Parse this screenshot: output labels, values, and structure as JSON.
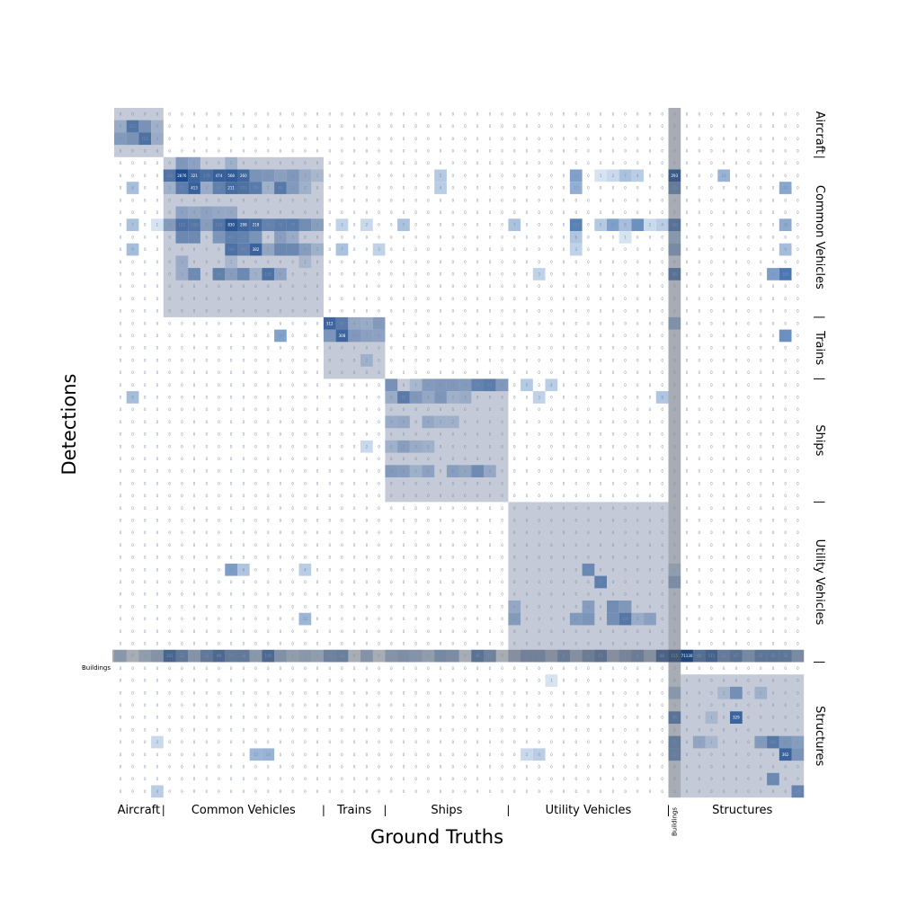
{
  "chart_data": {
    "type": "heatmap",
    "xlabel": "Ground Truths",
    "ylabel": "Detections",
    "colormap": "Blues",
    "x_groups": [
      {
        "label": "Aircraft",
        "sep": "|"
      },
      {
        "label": "Common Vehicles",
        "sep": "|"
      },
      {
        "label": "Trains",
        "sep": "|"
      },
      {
        "label": "Ships",
        "sep": "|"
      },
      {
        "label": "Utility Vehicles",
        "sep": "|"
      },
      {
        "label": "Buildings",
        "sep": ""
      },
      {
        "label": "Structures",
        "sep": ""
      }
    ],
    "y_groups": [
      {
        "label": "Aircraft",
        "sep": "|"
      },
      {
        "label": "Common Vehicles",
        "sep": "|"
      },
      {
        "label": "Trains",
        "sep": "|"
      },
      {
        "label": "Ships",
        "sep": "|"
      },
      {
        "label": "Utility Vehicles",
        "sep": "|"
      },
      {
        "label": "Structures",
        "sep": ""
      }
    ],
    "row_tick_label": "Buildings",
    "group_spans_rows": [
      [
        0,
        3
      ],
      [
        4,
        16
      ],
      [
        17,
        21
      ],
      [
        22,
        31
      ],
      [
        32,
        44
      ],
      [
        45,
        45
      ],
      [
        46,
        55
      ]
    ],
    "group_spans_cols": [
      [
        0,
        3
      ],
      [
        4,
        16
      ],
      [
        17,
        21
      ],
      [
        22,
        31
      ],
      [
        32,
        44
      ],
      [
        45,
        45
      ],
      [
        46,
        55
      ]
    ],
    "highlights": [
      {
        "r": 1,
        "c": 1,
        "v": 111
      },
      {
        "r": 1,
        "c": 2,
        "v": 18
      },
      {
        "r": 1,
        "c": 3,
        "v": 2
      },
      {
        "r": 1,
        "c": 0,
        "v": 3
      },
      {
        "r": 2,
        "c": 0,
        "v": 11
      },
      {
        "r": 2,
        "c": 1,
        "v": 18
      },
      {
        "r": 2,
        "c": 2,
        "v": 152
      },
      {
        "r": 2,
        "c": 3,
        "v": 3
      },
      {
        "r": 4,
        "c": 5,
        "v": 13
      },
      {
        "r": 4,
        "c": 6,
        "v": 6
      },
      {
        "r": 4,
        "c": 9,
        "v": 2
      },
      {
        "r": 5,
        "c": 4,
        "v": 122
      },
      {
        "r": 5,
        "c": 5,
        "v": 2876
      },
      {
        "r": 5,
        "c": 6,
        "v": 321
      },
      {
        "r": 5,
        "c": 7,
        "v": 174
      },
      {
        "r": 5,
        "c": 8,
        "v": 474
      },
      {
        "r": 5,
        "c": 9,
        "v": 568
      },
      {
        "r": 5,
        "c": 10,
        "v": 260
      },
      {
        "r": 5,
        "c": 11,
        "v": 17
      },
      {
        "r": 5,
        "c": 12,
        "v": 14
      },
      {
        "r": 5,
        "c": 13,
        "v": 7
      },
      {
        "r": 5,
        "c": 14,
        "v": 13
      },
      {
        "r": 5,
        "c": 15,
        "v": 3
      },
      {
        "r": 5,
        "c": 16,
        "v": 1
      },
      {
        "r": 5,
        "c": 26,
        "v": 5
      },
      {
        "r": 5,
        "c": 37,
        "v": 31
      },
      {
        "r": 5,
        "c": 39,
        "v": 1
      },
      {
        "r": 5,
        "c": 40,
        "v": 2
      },
      {
        "r": 5,
        "c": 41,
        "v": 7
      },
      {
        "r": 5,
        "c": 42,
        "v": 4
      },
      {
        "r": 5,
        "c": 45,
        "v": 293
      },
      {
        "r": 5,
        "c": 49,
        "v": 14
      },
      {
        "r": 6,
        "c": 1,
        "v": 8
      },
      {
        "r": 6,
        "c": 4,
        "v": 2
      },
      {
        "r": 6,
        "c": 5,
        "v": 73
      },
      {
        "r": 6,
        "c": 6,
        "v": 413
      },
      {
        "r": 6,
        "c": 7,
        "v": 3
      },
      {
        "r": 6,
        "c": 8,
        "v": 61
      },
      {
        "r": 6,
        "c": 9,
        "v": 211
      },
      {
        "r": 6,
        "c": 10,
        "v": 153
      },
      {
        "r": 6,
        "c": 11,
        "v": 78
      },
      {
        "r": 6,
        "c": 12,
        "v": 2
      },
      {
        "r": 6,
        "c": 13,
        "v": 93
      },
      {
        "r": 6,
        "c": 14,
        "v": 11
      },
      {
        "r": 6,
        "c": 15,
        "v": 2
      },
      {
        "r": 6,
        "c": 26,
        "v": 4
      },
      {
        "r": 6,
        "c": 37,
        "v": 17
      },
      {
        "r": 6,
        "c": 45,
        "v": 25
      },
      {
        "r": 6,
        "c": 54,
        "v": 24
      },
      {
        "r": 8,
        "c": 5,
        "v": 6
      },
      {
        "r": 8,
        "c": 6,
        "v": 4
      },
      {
        "r": 8,
        "c": 7,
        "v": 6
      },
      {
        "r": 8,
        "c": 8,
        "v": 4
      },
      {
        "r": 8,
        "c": 9,
        "v": 4
      },
      {
        "r": 9,
        "c": 1,
        "v": 7
      },
      {
        "r": 9,
        "c": 3,
        "v": 1
      },
      {
        "r": 9,
        "c": 4,
        "v": 10
      },
      {
        "r": 9,
        "c": 5,
        "v": 152
      },
      {
        "r": 9,
        "c": 6,
        "v": 109
      },
      {
        "r": 9,
        "c": 7,
        "v": 9
      },
      {
        "r": 9,
        "c": 8,
        "v": 110
      },
      {
        "r": 9,
        "c": 9,
        "v": 830
      },
      {
        "r": 9,
        "c": 10,
        "v": 298
      },
      {
        "r": 9,
        "c": 11,
        "v": 218
      },
      {
        "r": 9,
        "c": 12,
        "v": 50
      },
      {
        "r": 9,
        "c": 13,
        "v": 75
      },
      {
        "r": 9,
        "c": 14,
        "v": 79
      },
      {
        "r": 9,
        "c": 15,
        "v": 25
      },
      {
        "r": 9,
        "c": 16,
        "v": 8
      },
      {
        "r": 9,
        "c": 18,
        "v": 3
      },
      {
        "r": 9,
        "c": 20,
        "v": 2
      },
      {
        "r": 9,
        "c": 23,
        "v": 7
      },
      {
        "r": 9,
        "c": 32,
        "v": 7
      },
      {
        "r": 9,
        "c": 37,
        "v": 120
      },
      {
        "r": 9,
        "c": 39,
        "v": 5
      },
      {
        "r": 9,
        "c": 40,
        "v": 33
      },
      {
        "r": 9,
        "c": 41,
        "v": 8
      },
      {
        "r": 9,
        "c": 42,
        "v": 63
      },
      {
        "r": 9,
        "c": 43,
        "v": 2
      },
      {
        "r": 9,
        "c": 44,
        "v": 4
      },
      {
        "r": 9,
        "c": 45,
        "v": 54
      },
      {
        "r": 9,
        "c": 54,
        "v": 20
      },
      {
        "r": 10,
        "c": 5,
        "v": 36
      },
      {
        "r": 10,
        "c": 6,
        "v": 31
      },
      {
        "r": 10,
        "c": 8,
        "v": 15
      },
      {
        "r": 10,
        "c": 9,
        "v": 63
      },
      {
        "r": 10,
        "c": 10,
        "v": 53
      },
      {
        "r": 10,
        "c": 11,
        "v": 17
      },
      {
        "r": 10,
        "c": 13,
        "v": 8
      },
      {
        "r": 10,
        "c": 14,
        "v": 3
      },
      {
        "r": 10,
        "c": 37,
        "v": 6
      },
      {
        "r": 10,
        "c": 41,
        "v": 1
      },
      {
        "r": 10,
        "c": 45,
        "v": 2
      },
      {
        "r": 11,
        "c": 1,
        "v": 9
      },
      {
        "r": 11,
        "c": 9,
        "v": 144
      },
      {
        "r": 11,
        "c": 10,
        "v": 64
      },
      {
        "r": 11,
        "c": 11,
        "v": 382
      },
      {
        "r": 11,
        "c": 12,
        "v": 5
      },
      {
        "r": 11,
        "c": 13,
        "v": 37
      },
      {
        "r": 11,
        "c": 14,
        "v": 36
      },
      {
        "r": 11,
        "c": 15,
        "v": 9
      },
      {
        "r": 11,
        "c": 16,
        "v": 2
      },
      {
        "r": 11,
        "c": 18,
        "v": 7
      },
      {
        "r": 11,
        "c": 21,
        "v": 3
      },
      {
        "r": 11,
        "c": 37,
        "v": 3
      },
      {
        "r": 11,
        "c": 45,
        "v": 7
      },
      {
        "r": 11,
        "c": 54,
        "v": 9
      },
      {
        "r": 12,
        "c": 5,
        "v": 3
      },
      {
        "r": 12,
        "c": 9,
        "v": 1
      },
      {
        "r": 12,
        "c": 15,
        "v": 1
      },
      {
        "r": 13,
        "c": 5,
        "v": 3
      },
      {
        "r": 13,
        "c": 6,
        "v": 30
      },
      {
        "r": 13,
        "c": 8,
        "v": 56
      },
      {
        "r": 13,
        "c": 9,
        "v": 9
      },
      {
        "r": 13,
        "c": 10,
        "v": 34
      },
      {
        "r": 13,
        "c": 11,
        "v": 2
      },
      {
        "r": 13,
        "c": 12,
        "v": 156
      },
      {
        "r": 13,
        "c": 13,
        "v": 6
      },
      {
        "r": 13,
        "c": 34,
        "v": 3
      },
      {
        "r": 13,
        "c": 45,
        "v": 50
      },
      {
        "r": 13,
        "c": 53,
        "v": 37
      },
      {
        "r": 13,
        "c": 54,
        "v": 180
      },
      {
        "r": 17,
        "c": 17,
        "v": 312
      },
      {
        "r": 17,
        "c": 18,
        "v": 83
      },
      {
        "r": 17,
        "c": 19,
        "v": 4
      },
      {
        "r": 17,
        "c": 20,
        "v": 3
      },
      {
        "r": 17,
        "c": 21,
        "v": 11
      },
      {
        "r": 17,
        "c": 45,
        "v": 4
      },
      {
        "r": 18,
        "c": 13,
        "v": 30
      },
      {
        "r": 18,
        "c": 17,
        "v": 15
      },
      {
        "r": 18,
        "c": 18,
        "v": 308
      },
      {
        "r": 18,
        "c": 19,
        "v": 13
      },
      {
        "r": 18,
        "c": 20,
        "v": 7
      },
      {
        "r": 18,
        "c": 21,
        "v": 6
      },
      {
        "r": 18,
        "c": 54,
        "v": 64
      },
      {
        "r": 20,
        "c": 20,
        "v": 2
      },
      {
        "r": 22,
        "c": 22,
        "v": 19
      },
      {
        "r": 22,
        "c": 24,
        "v": 1
      },
      {
        "r": 22,
        "c": 25,
        "v": 10
      },
      {
        "r": 22,
        "c": 26,
        "v": 12
      },
      {
        "r": 22,
        "c": 27,
        "v": 12
      },
      {
        "r": 22,
        "c": 28,
        "v": 10
      },
      {
        "r": 22,
        "c": 29,
        "v": 51
      },
      {
        "r": 22,
        "c": 30,
        "v": 73
      },
      {
        "r": 22,
        "c": 31,
        "v": 13
      },
      {
        "r": 22,
        "c": 33,
        "v": 5
      },
      {
        "r": 22,
        "c": 35,
        "v": 4
      },
      {
        "r": 23,
        "c": 1,
        "v": 9
      },
      {
        "r": 23,
        "c": 22,
        "v": 3
      },
      {
        "r": 23,
        "c": 23,
        "v": 85
      },
      {
        "r": 23,
        "c": 24,
        "v": 12
      },
      {
        "r": 23,
        "c": 25,
        "v": 4
      },
      {
        "r": 23,
        "c": 26,
        "v": 14
      },
      {
        "r": 23,
        "c": 27,
        "v": 2
      },
      {
        "r": 23,
        "c": 28,
        "v": 3
      },
      {
        "r": 23,
        "c": 34,
        "v": 3
      },
      {
        "r": 23,
        "c": 44,
        "v": 6
      },
      {
        "r": 25,
        "c": 22,
        "v": 3
      },
      {
        "r": 25,
        "c": 23,
        "v": 4
      },
      {
        "r": 25,
        "c": 25,
        "v": 4
      },
      {
        "r": 25,
        "c": 26,
        "v": 2
      },
      {
        "r": 25,
        "c": 27,
        "v": 2
      },
      {
        "r": 27,
        "c": 20,
        "v": 2
      },
      {
        "r": 27,
        "c": 22,
        "v": 2
      },
      {
        "r": 27,
        "c": 23,
        "v": 8
      },
      {
        "r": 27,
        "c": 24,
        "v": 3
      },
      {
        "r": 27,
        "c": 25,
        "v": 2
      },
      {
        "r": 29,
        "c": 22,
        "v": 11
      },
      {
        "r": 29,
        "c": 23,
        "v": 9
      },
      {
        "r": 29,
        "c": 24,
        "v": 2
      },
      {
        "r": 29,
        "c": 25,
        "v": 6
      },
      {
        "r": 29,
        "c": 27,
        "v": 8
      },
      {
        "r": 29,
        "c": 28,
        "v": 5
      },
      {
        "r": 29,
        "c": 29,
        "v": 30
      },
      {
        "r": 29,
        "c": 30,
        "v": 4
      },
      {
        "r": 37,
        "c": 9,
        "v": 37
      },
      {
        "r": 37,
        "c": 10,
        "v": 6
      },
      {
        "r": 37,
        "c": 15,
        "v": 4
      },
      {
        "r": 37,
        "c": 38,
        "v": 35
      },
      {
        "r": 37,
        "c": 45,
        "v": 1
      },
      {
        "r": 38,
        "c": 39,
        "v": 67
      },
      {
        "r": 38,
        "c": 45,
        "v": 6
      },
      {
        "r": 40,
        "c": 32,
        "v": 4
      },
      {
        "r": 40,
        "c": 38,
        "v": 9
      },
      {
        "r": 40,
        "c": 40,
        "v": 25
      },
      {
        "r": 40,
        "c": 41,
        "v": 13
      },
      {
        "r": 41,
        "c": 15,
        "v": 12
      },
      {
        "r": 41,
        "c": 32,
        "v": 10
      },
      {
        "r": 41,
        "c": 37,
        "v": 11
      },
      {
        "r": 41,
        "c": 38,
        "v": 15
      },
      {
        "r": 41,
        "c": 40,
        "v": 22
      },
      {
        "r": 41,
        "c": 41,
        "v": 107
      },
      {
        "r": 41,
        "c": 42,
        "v": 3
      },
      {
        "r": 41,
        "c": 43,
        "v": 7
      },
      {
        "r": 44,
        "c": 0,
        "v": 2
      },
      {
        "r": 44,
        "c": 2,
        "v": 1
      },
      {
        "r": 44,
        "c": 3,
        "v": 3
      },
      {
        "r": 44,
        "c": 4,
        "v": 141
      },
      {
        "r": 44,
        "c": 5,
        "v": 33
      },
      {
        "r": 44,
        "c": 6,
        "v": 3
      },
      {
        "r": 44,
        "c": 7,
        "v": 31
      },
      {
        "r": 44,
        "c": 8,
        "v": 98
      },
      {
        "r": 44,
        "c": 9,
        "v": 27
      },
      {
        "r": 44,
        "c": 10,
        "v": 28
      },
      {
        "r": 44,
        "c": 11,
        "v": 2
      },
      {
        "r": 44,
        "c": 12,
        "v": 105
      },
      {
        "r": 44,
        "c": 13,
        "v": 4
      },
      {
        "r": 44,
        "c": 14,
        "v": 1
      },
      {
        "r": 44,
        "c": 15,
        "v": 2
      },
      {
        "r": 44,
        "c": 16,
        "v": 1
      },
      {
        "r": 44,
        "c": 17,
        "v": 15
      },
      {
        "r": 44,
        "c": 18,
        "v": 18
      },
      {
        "r": 44,
        "c": 20,
        "v": 3
      },
      {
        "r": 44,
        "c": 22,
        "v": 3
      },
      {
        "r": 44,
        "c": 23,
        "v": 5
      },
      {
        "r": 44,
        "c": 24,
        "v": 3
      },
      {
        "r": 44,
        "c": 25,
        "v": 1
      },
      {
        "r": 44,
        "c": 26,
        "v": 8
      },
      {
        "r": 44,
        "c": 27,
        "v": 6
      },
      {
        "r": 44,
        "c": 29,
        "v": 46
      },
      {
        "r": 44,
        "c": 30,
        "v": 15
      },
      {
        "r": 44,
        "c": 33,
        "v": 2
      },
      {
        "r": 44,
        "c": 34,
        "v": 2
      },
      {
        "r": 44,
        "c": 36,
        "v": 5
      },
      {
        "r": 44,
        "c": 38,
        "v": 4
      },
      {
        "r": 44,
        "c": 39,
        "v": 17
      },
      {
        "r": 44,
        "c": 41,
        "v": 1
      },
      {
        "r": 44,
        "c": 42,
        "v": 4
      },
      {
        "r": 44,
        "c": 44,
        "v": 82
      },
      {
        "r": 44,
        "c": 45,
        "v": 155
      },
      {
        "r": 44,
        "c": 46,
        "v": 71130
      },
      {
        "r": 44,
        "c": 47,
        "v": 65
      },
      {
        "r": 44,
        "c": 48,
        "v": 171
      },
      {
        "r": 44,
        "c": 49,
        "v": 25
      },
      {
        "r": 44,
        "c": 50,
        "v": 47
      },
      {
        "r": 44,
        "c": 51,
        "v": 8
      },
      {
        "r": 44,
        "c": 52,
        "v": 41
      },
      {
        "r": 44,
        "c": 53,
        "v": 42
      },
      {
        "r": 44,
        "c": 54,
        "v": 36
      },
      {
        "r": 44,
        "c": 55,
        "v": 7
      },
      {
        "r": 46,
        "c": 35,
        "v": 1
      },
      {
        "r": 47,
        "c": 45,
        "v": 2
      },
      {
        "r": 47,
        "c": 49,
        "v": 1
      },
      {
        "r": 47,
        "c": 50,
        "v": 23
      },
      {
        "r": 47,
        "c": 52,
        "v": 2
      },
      {
        "r": 49,
        "c": 45,
        "v": 45
      },
      {
        "r": 49,
        "c": 48,
        "v": 1
      },
      {
        "r": 49,
        "c": 50,
        "v": 329
      },
      {
        "r": 51,
        "c": 3,
        "v": 2
      },
      {
        "r": 51,
        "c": 45,
        "v": 25
      },
      {
        "r": 51,
        "c": 47,
        "v": 5
      },
      {
        "r": 51,
        "c": 48,
        "v": 1
      },
      {
        "r": 51,
        "c": 52,
        "v": 11
      },
      {
        "r": 51,
        "c": 53,
        "v": 102
      },
      {
        "r": 51,
        "c": 54,
        "v": 16
      },
      {
        "r": 51,
        "c": 55,
        "v": 9
      },
      {
        "r": 52,
        "c": 11,
        "v": 12
      },
      {
        "r": 52,
        "c": 12,
        "v": 14
      },
      {
        "r": 52,
        "c": 33,
        "v": 2
      },
      {
        "r": 52,
        "c": 34,
        "v": 4
      },
      {
        "r": 52,
        "c": 45,
        "v": 22
      },
      {
        "r": 52,
        "c": 54,
        "v": 362
      },
      {
        "r": 52,
        "c": 55,
        "v": 17
      },
      {
        "r": 54,
        "c": 53,
        "v": 33
      },
      {
        "r": 55,
        "c": 3,
        "v": 4
      },
      {
        "r": 55,
        "c": 55,
        "v": 44
      }
    ]
  }
}
